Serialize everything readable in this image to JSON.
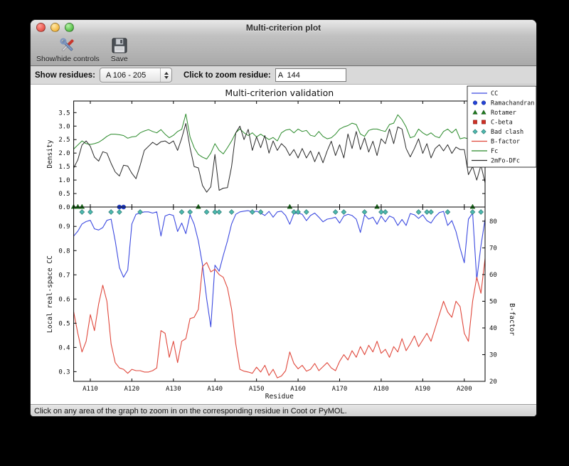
{
  "window": {
    "title": "Multi-criterion plot"
  },
  "toolbar": {
    "show_hide_label": "Show/hide controls",
    "save_label": "Save"
  },
  "controls": {
    "show_residues_label": "Show residues:",
    "show_residues_value": "A 106 - 205",
    "zoom_residue_label": "Click to zoom residue:",
    "zoom_residue_value": "A  144"
  },
  "statusbar": {
    "text": "Click on any area of the graph to zoom in on the corresponding residue in Coot or PyMOL."
  },
  "chart_data": {
    "type": "line",
    "title": "Multi-criterion validation",
    "xlabel": "Residue",
    "x_start_residue": 106,
    "x_end_residue": 205,
    "xtick_labels": [
      "A110",
      "A120",
      "A130",
      "A140",
      "A150",
      "A160",
      "A170",
      "A180",
      "A190",
      "A200"
    ],
    "top_panel": {
      "ylabel": "Density",
      "ylim": [
        0,
        3.93
      ],
      "ytick_labels": [
        "0.0",
        "0.5",
        "1.0",
        "1.5",
        "2.0",
        "2.5",
        "3.0",
        "3.5"
      ],
      "series": [
        {
          "name": "Fc",
          "color": "#2a8a2a",
          "values": [
            2.15,
            2.3,
            2.45,
            2.35,
            2.32,
            2.35,
            2.4,
            2.5,
            2.62,
            2.7,
            2.7,
            2.68,
            2.65,
            2.55,
            2.6,
            2.62,
            2.75,
            2.82,
            2.87,
            2.8,
            2.75,
            2.87,
            2.7,
            2.57,
            2.66,
            2.8,
            2.88,
            3.45,
            2.6,
            2.2,
            1.95,
            1.85,
            1.78,
            2.0,
            2.35,
            2.1,
            1.97,
            2.2,
            2.45,
            2.75,
            2.9,
            2.75,
            2.65,
            2.75,
            2.6,
            2.7,
            2.6,
            2.5,
            2.58,
            2.45,
            2.75,
            2.85,
            2.88,
            2.75,
            2.89,
            2.8,
            2.84,
            2.66,
            2.62,
            2.8,
            2.62,
            2.53,
            2.57,
            2.7,
            2.89,
            2.97,
            3.02,
            3.11,
            3.06,
            2.71,
            2.62,
            2.84,
            2.89,
            2.89,
            2.84,
            2.8,
            3.06,
            3.11,
            3.42,
            3.24,
            2.97,
            2.57,
            2.62,
            2.89,
            2.75,
            2.66,
            2.75,
            2.62,
            2.57,
            2.8,
            2.89,
            2.75,
            2.89,
            2.53,
            2.57,
            2.53,
            2.13,
            2.62,
            2.93,
            2.84
          ]
        },
        {
          "name": "2mFo-DFc",
          "color": "#2a2a2a",
          "values": [
            1.45,
            1.75,
            2.3,
            2.45,
            2.25,
            1.85,
            1.7,
            2.05,
            2.0,
            1.62,
            1.3,
            1.15,
            1.55,
            1.52,
            1.25,
            1.05,
            1.55,
            2.1,
            2.25,
            2.4,
            2.3,
            2.42,
            2.45,
            2.35,
            2.45,
            2.1,
            2.55,
            3.1,
            2.2,
            1.5,
            1.45,
            0.8,
            0.55,
            0.75,
            1.95,
            0.62,
            0.7,
            0.72,
            1.5,
            2.75,
            3.0,
            2.5,
            2.88,
            2.1,
            2.6,
            2.2,
            2.65,
            2.0,
            2.45,
            2.1,
            2.35,
            2.2,
            1.91,
            2.13,
            1.82,
            2.17,
            1.82,
            2.08,
            1.68,
            2.04,
            1.64,
            2.08,
            2.44,
            1.91,
            2.31,
            1.82,
            2.71,
            2.17,
            2.8,
            2.13,
            2.57,
            2.04,
            2.44,
            1.91,
            2.53,
            2.35,
            2.89,
            2.35,
            2.97,
            2.89,
            2.17,
            1.86,
            2.17,
            2.53,
            1.99,
            2.35,
            1.82,
            2.17,
            2.31,
            2.08,
            2.31,
            1.99,
            2.22,
            2.13,
            2.13,
            1.2,
            1.5,
            1.0,
            1.55,
            0.9
          ]
        }
      ]
    },
    "bottom_panel": {
      "left_ylabel": "Local real-space CC",
      "left_ylim": [
        0.26,
        0.98
      ],
      "left_ytick_labels": [
        "0.3",
        "0.4",
        "0.5",
        "0.6",
        "0.7",
        "0.8",
        "0.9"
      ],
      "right_ylabel": "B-factor",
      "right_ylim": [
        20,
        85.3
      ],
      "right_ytick_labels": [
        "20",
        "30",
        "40",
        "50",
        "60",
        "70",
        "80"
      ],
      "series": [
        {
          "name": "CC",
          "axis": "left",
          "color": "#3c4ae0",
          "values": [
            0.86,
            0.88,
            0.91,
            0.92,
            0.925,
            0.89,
            0.885,
            0.895,
            0.925,
            0.93,
            0.84,
            0.73,
            0.69,
            0.72,
            0.91,
            0.95,
            0.955,
            0.96,
            0.96,
            0.955,
            0.96,
            0.86,
            0.943,
            0.95,
            0.945,
            0.879,
            0.914,
            0.87,
            0.948,
            0.909,
            0.84,
            0.742,
            0.6,
            0.485,
            0.74,
            0.715,
            0.78,
            0.84,
            0.91,
            0.95,
            0.96,
            0.963,
            0.965,
            0.96,
            0.963,
            0.955,
            0.945,
            0.962,
            0.938,
            0.96,
            0.963,
            0.945,
            0.909,
            0.953,
            0.955,
            0.95,
            0.924,
            0.945,
            0.955,
            0.938,
            0.919,
            0.93,
            0.933,
            0.938,
            0.914,
            0.943,
            0.95,
            0.945,
            0.93,
            0.875,
            0.948,
            0.93,
            0.938,
            0.909,
            0.943,
            0.919,
            0.943,
            0.935,
            0.904,
            0.929,
            0.904,
            0.953,
            0.948,
            0.933,
            0.948,
            0.924,
            0.914,
            0.94,
            0.957,
            0.962,
            0.904,
            0.924,
            0.879,
            0.81,
            0.75,
            0.93,
            0.955,
            0.68,
            0.82,
            0.93
          ]
        },
        {
          "name": "B-factor",
          "axis": "right",
          "color": "#e0483c",
          "values": [
            46,
            38,
            31,
            35,
            45,
            39,
            49,
            56,
            50,
            34,
            27,
            25,
            24.5,
            23,
            24.5,
            24,
            24,
            23.5,
            23.5,
            24,
            25,
            39,
            38,
            29,
            35,
            27,
            35,
            36,
            43.5,
            44,
            47,
            63,
            64.5,
            61,
            62,
            60,
            59,
            55,
            47,
            34,
            24.5,
            23.8,
            23.5,
            23,
            25.3,
            23.5,
            26,
            22.2,
            24.5,
            21.3,
            22,
            24,
            31,
            26.7,
            24.7,
            26,
            23.8,
            24.5,
            26.7,
            24,
            25.5,
            27,
            25,
            24,
            27.5,
            30,
            28,
            31.5,
            29,
            33,
            30,
            33.5,
            31,
            35,
            30.5,
            32,
            29,
            33,
            31,
            36,
            31.5,
            34,
            37,
            33,
            35.5,
            38,
            35,
            40,
            45,
            50,
            46,
            44,
            50,
            48,
            38,
            35,
            50,
            59,
            53,
            66
          ]
        }
      ]
    },
    "outlier_markers": {
      "ramachandran": {
        "shape": "circle",
        "color": "#2442d8",
        "residues": [
          117,
          118
        ]
      },
      "rotamer": {
        "shape": "triangle",
        "color": "#1d7a1d",
        "residues": [
          106,
          107,
          108,
          136,
          158,
          179,
          202
        ]
      },
      "c_beta": {
        "shape": "square",
        "color": "#d03025",
        "residues": []
      },
      "bad_clash": {
        "shape": "diamond",
        "color": "#4cb8ae",
        "residues": [
          108,
          110,
          115,
          117,
          122,
          132,
          134,
          138,
          140,
          141,
          144,
          149,
          151,
          159,
          160,
          162,
          169,
          171,
          176,
          180,
          181,
          189,
          191,
          192,
          196,
          202,
          204
        ]
      }
    },
    "legend": {
      "position": "upper right",
      "entries": [
        {
          "label": "CC",
          "swatch": "line",
          "color": "#3c4ae0"
        },
        {
          "label": "Ramachandran",
          "swatch": "circle",
          "color": "#2442d8"
        },
        {
          "label": "Rotamer",
          "swatch": "triangle",
          "color": "#1d7a1d"
        },
        {
          "label": "C-beta",
          "swatch": "square",
          "color": "#d03025"
        },
        {
          "label": "Bad clash",
          "swatch": "diamond",
          "color": "#4cb8ae"
        },
        {
          "label": "B-factor",
          "swatch": "line",
          "color": "#e0483c"
        },
        {
          "label": "Fc",
          "swatch": "line",
          "color": "#2a8a2a"
        },
        {
          "label": "2mFo-DFc",
          "swatch": "line",
          "color": "#2a2a2a"
        }
      ]
    }
  }
}
